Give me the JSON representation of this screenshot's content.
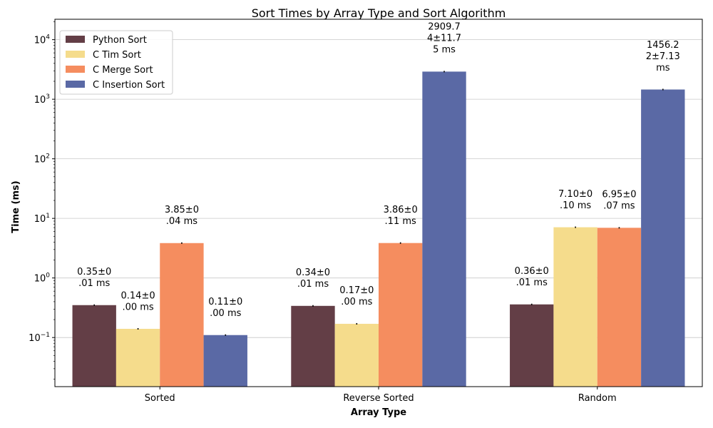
{
  "chart_data": {
    "type": "bar",
    "title": "Sort Times by Array Type and Sort Algorithm",
    "xlabel": "Array Type",
    "ylabel": "Time (ms)",
    "yscale": "log",
    "ylim": [
      0.015,
      22000
    ],
    "yticks": [
      {
        "value": 0.1,
        "base": "10",
        "exp": "−1"
      },
      {
        "value": 1,
        "base": "10",
        "exp": "0"
      },
      {
        "value": 10,
        "base": "10",
        "exp": "1"
      },
      {
        "value": 100,
        "base": "10",
        "exp": "2"
      },
      {
        "value": 1000,
        "base": "10",
        "exp": "3"
      },
      {
        "value": 10000,
        "base": "10",
        "exp": "4"
      }
    ],
    "grid": "horizontal",
    "legend_position": "top-left",
    "categories": [
      "Sorted",
      "Reverse Sorted",
      "Random"
    ],
    "series": [
      {
        "name": "Python Sort",
        "color": "#633e46",
        "values": [
          0.35,
          0.34,
          0.36
        ],
        "errors": [
          0.01,
          0.01,
          0.01
        ],
        "labels": [
          [
            "0.35±0",
            ".01 ms"
          ],
          [
            "0.34±0",
            ".01 ms"
          ],
          [
            "0.36±0",
            ".01 ms"
          ]
        ]
      },
      {
        "name": "C Tim Sort",
        "color": "#f5dc8c",
        "values": [
          0.14,
          0.17,
          7.1
        ],
        "errors": [
          0.0,
          0.0,
          0.1
        ],
        "labels": [
          [
            "0.14±0",
            ".00 ms"
          ],
          [
            "0.17±0",
            ".00 ms"
          ],
          [
            "7.10±0",
            ".10 ms"
          ]
        ]
      },
      {
        "name": "C Merge Sort",
        "color": "#f58d5f",
        "values": [
          3.85,
          3.86,
          6.95
        ],
        "errors": [
          0.04,
          0.11,
          0.07
        ],
        "labels": [
          [
            "3.85±0",
            ".04 ms"
          ],
          [
            "3.86±0",
            ".11 ms"
          ],
          [
            "6.95±0",
            ".07 ms"
          ]
        ]
      },
      {
        "name": "C Insertion Sort",
        "color": "#5a69a5",
        "values": [
          0.11,
          2909.74,
          1456.22
        ],
        "errors": [
          0.0,
          11.75,
          7.13
        ],
        "labels": [
          [
            "0.11±0",
            ".00 ms"
          ],
          [
            "2909.7",
            "4±11.7",
            "5 ms"
          ],
          [
            "1456.2",
            "2±7.13",
            "ms"
          ]
        ]
      }
    ]
  }
}
